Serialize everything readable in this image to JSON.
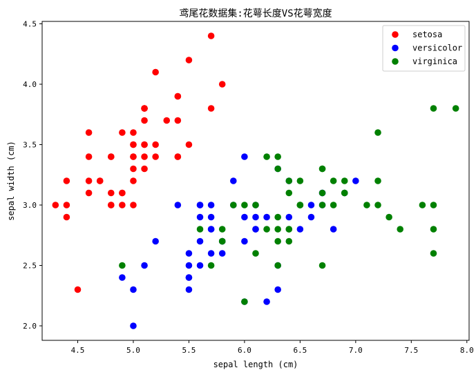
{
  "chart_data": {
    "type": "scatter",
    "title": "鸢尾花数据集:花萼长度VS花萼宽度",
    "xlabel": "sepal length (cm)",
    "ylabel": "sepal width (cm)",
    "xlim": [
      4.18,
      8.02
    ],
    "ylim": [
      1.88,
      4.52
    ],
    "xticks": [
      4.5,
      5.0,
      5.5,
      6.0,
      6.5,
      7.0,
      7.5,
      8.0
    ],
    "xtick_labels": [
      "4.5",
      "5.0",
      "5.5",
      "6.0",
      "6.5",
      "7.0",
      "7.5",
      "8.0"
    ],
    "yticks": [
      2.0,
      2.5,
      3.0,
      3.5,
      4.0,
      4.5
    ],
    "ytick_labels": [
      "2.0",
      "2.5",
      "3.0",
      "3.5",
      "4.0",
      "4.5"
    ],
    "grid": false,
    "legend_position": "top-right",
    "series": [
      {
        "name": "setosa",
        "color": "#ff0000",
        "points": [
          [
            5.1,
            3.5
          ],
          [
            4.9,
            3.0
          ],
          [
            4.7,
            3.2
          ],
          [
            4.6,
            3.1
          ],
          [
            5.0,
            3.6
          ],
          [
            5.4,
            3.9
          ],
          [
            4.6,
            3.4
          ],
          [
            5.0,
            3.4
          ],
          [
            4.4,
            2.9
          ],
          [
            4.9,
            3.1
          ],
          [
            5.4,
            3.7
          ],
          [
            4.8,
            3.4
          ],
          [
            4.8,
            3.0
          ],
          [
            4.3,
            3.0
          ],
          [
            5.8,
            4.0
          ],
          [
            5.7,
            4.4
          ],
          [
            5.4,
            3.9
          ],
          [
            5.1,
            3.5
          ],
          [
            5.7,
            3.8
          ],
          [
            5.1,
            3.8
          ],
          [
            5.4,
            3.4
          ],
          [
            5.1,
            3.7
          ],
          [
            4.6,
            3.6
          ],
          [
            5.1,
            3.3
          ],
          [
            4.8,
            3.4
          ],
          [
            5.0,
            3.0
          ],
          [
            5.0,
            3.4
          ],
          [
            5.2,
            3.5
          ],
          [
            5.2,
            3.4
          ],
          [
            4.7,
            3.2
          ],
          [
            4.8,
            3.1
          ],
          [
            5.4,
            3.4
          ],
          [
            5.2,
            4.1
          ],
          [
            5.5,
            4.2
          ],
          [
            4.9,
            3.1
          ],
          [
            5.0,
            3.2
          ],
          [
            5.5,
            3.5
          ],
          [
            4.9,
            3.6
          ],
          [
            4.4,
            3.0
          ],
          [
            5.1,
            3.4
          ],
          [
            5.0,
            3.5
          ],
          [
            4.5,
            2.3
          ],
          [
            4.4,
            3.2
          ],
          [
            5.0,
            3.5
          ],
          [
            5.1,
            3.8
          ],
          [
            4.8,
            3.0
          ],
          [
            5.1,
            3.8
          ],
          [
            4.6,
            3.2
          ],
          [
            5.3,
            3.7
          ],
          [
            5.0,
            3.3
          ]
        ]
      },
      {
        "name": "versicolor",
        "color": "#0000ff",
        "points": [
          [
            7.0,
            3.2
          ],
          [
            6.4,
            3.2
          ],
          [
            6.9,
            3.1
          ],
          [
            5.5,
            2.3
          ],
          [
            6.5,
            2.8
          ],
          [
            5.7,
            2.8
          ],
          [
            6.3,
            3.3
          ],
          [
            4.9,
            2.4
          ],
          [
            6.6,
            2.9
          ],
          [
            5.2,
            2.7
          ],
          [
            5.0,
            2.0
          ],
          [
            5.9,
            3.0
          ],
          [
            6.0,
            2.2
          ],
          [
            6.1,
            2.9
          ],
          [
            5.6,
            2.9
          ],
          [
            6.7,
            3.1
          ],
          [
            5.6,
            3.0
          ],
          [
            5.8,
            2.7
          ],
          [
            6.2,
            2.2
          ],
          [
            5.6,
            2.5
          ],
          [
            5.9,
            3.2
          ],
          [
            6.1,
            2.8
          ],
          [
            6.3,
            2.5
          ],
          [
            6.1,
            2.8
          ],
          [
            6.4,
            2.9
          ],
          [
            6.6,
            3.0
          ],
          [
            6.8,
            2.8
          ],
          [
            6.7,
            3.0
          ],
          [
            6.0,
            2.9
          ],
          [
            5.7,
            2.6
          ],
          [
            5.5,
            2.4
          ],
          [
            5.5,
            2.4
          ],
          [
            5.8,
            2.7
          ],
          [
            6.0,
            2.7
          ],
          [
            5.4,
            3.0
          ],
          [
            6.0,
            3.4
          ],
          [
            6.7,
            3.1
          ],
          [
            6.3,
            2.3
          ],
          [
            5.6,
            3.0
          ],
          [
            5.5,
            2.5
          ],
          [
            5.5,
            2.6
          ],
          [
            6.1,
            3.0
          ],
          [
            5.8,
            2.6
          ],
          [
            5.0,
            2.3
          ],
          [
            5.6,
            2.7
          ],
          [
            5.7,
            3.0
          ],
          [
            5.7,
            2.9
          ],
          [
            6.2,
            2.9
          ],
          [
            5.1,
            2.5
          ],
          [
            5.7,
            2.8
          ]
        ]
      },
      {
        "name": "virginica",
        "color": "#008000",
        "points": [
          [
            6.3,
            3.3
          ],
          [
            5.8,
            2.7
          ],
          [
            7.1,
            3.0
          ],
          [
            6.3,
            2.9
          ],
          [
            6.5,
            3.0
          ],
          [
            7.6,
            3.0
          ],
          [
            4.9,
            2.5
          ],
          [
            7.3,
            2.9
          ],
          [
            6.7,
            2.5
          ],
          [
            7.2,
            3.6
          ],
          [
            6.5,
            3.2
          ],
          [
            6.4,
            2.7
          ],
          [
            6.8,
            3.0
          ],
          [
            5.7,
            2.5
          ],
          [
            5.8,
            2.8
          ],
          [
            6.4,
            3.2
          ],
          [
            6.5,
            3.0
          ],
          [
            7.7,
            3.8
          ],
          [
            7.7,
            2.6
          ],
          [
            6.0,
            2.2
          ],
          [
            6.9,
            3.2
          ],
          [
            5.6,
            2.8
          ],
          [
            7.7,
            2.8
          ],
          [
            6.3,
            2.7
          ],
          [
            6.7,
            3.3
          ],
          [
            7.2,
            3.2
          ],
          [
            6.2,
            2.8
          ],
          [
            6.1,
            3.0
          ],
          [
            6.4,
            2.8
          ],
          [
            7.2,
            3.0
          ],
          [
            7.4,
            2.8
          ],
          [
            7.9,
            3.8
          ],
          [
            6.4,
            2.8
          ],
          [
            6.3,
            2.8
          ],
          [
            6.1,
            2.6
          ],
          [
            7.7,
            3.0
          ],
          [
            6.3,
            3.4
          ],
          [
            6.4,
            3.1
          ],
          [
            6.0,
            3.0
          ],
          [
            6.9,
            3.1
          ],
          [
            6.7,
            3.1
          ],
          [
            6.9,
            3.1
          ],
          [
            5.8,
            2.7
          ],
          [
            6.8,
            3.2
          ],
          [
            6.7,
            3.3
          ],
          [
            6.7,
            3.0
          ],
          [
            6.3,
            2.5
          ],
          [
            6.5,
            3.0
          ],
          [
            6.2,
            3.4
          ],
          [
            5.9,
            3.0
          ]
        ]
      }
    ]
  }
}
